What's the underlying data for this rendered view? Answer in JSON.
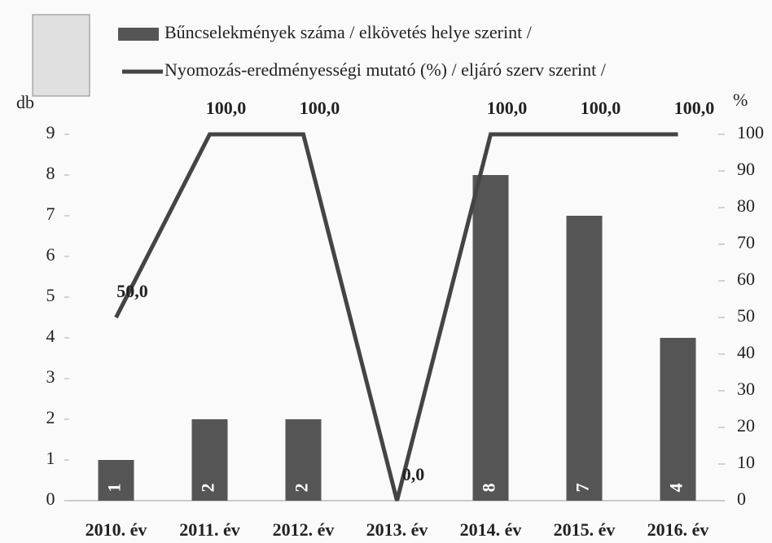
{
  "chart_data": {
    "type": "bar-line",
    "categories": [
      "2010. év",
      "2011. év",
      "2012. év",
      "2013. év",
      "2014. év",
      "2015. év",
      "2016. év"
    ],
    "series": [
      {
        "name": "Bűncselekmények száma / elkövetés helye szerint /",
        "type": "bar",
        "color": "#555555",
        "values": [
          1,
          2,
          2,
          0,
          8,
          7,
          4
        ]
      },
      {
        "name": "Nyomozás-eredményességi mutató (%) / eljáró szerv szerint /",
        "type": "line",
        "axis": "y2",
        "color": "#444444",
        "values": [
          50.0,
          100.0,
          100.0,
          0.0,
          100.0,
          100.0,
          100.0
        ],
        "value_labels": [
          "50,0",
          "100,0",
          "100,0",
          "0,0",
          "100,0",
          "100,0",
          "100,0"
        ]
      }
    ],
    "ylabel": "db",
    "y2label": "%",
    "ylim": [
      0,
      9
    ],
    "yticks": [
      0,
      1,
      2,
      3,
      4,
      5,
      6,
      7,
      8,
      9
    ],
    "y2lim": [
      0,
      100
    ],
    "y2ticks": [
      0,
      10,
      20,
      30,
      40,
      50,
      60,
      70,
      80,
      90,
      100
    ],
    "grid": false
  }
}
